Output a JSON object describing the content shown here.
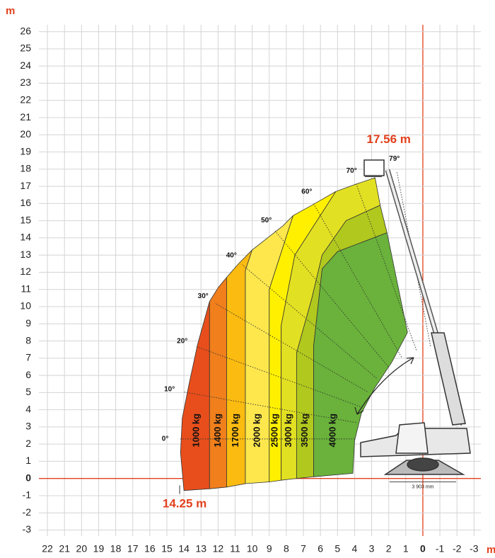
{
  "chart_data": {
    "type": "load-chart",
    "y_axis_label": "m",
    "x_axis_label": "m",
    "xlim": [
      22.5,
      -3.4
    ],
    "ylim": [
      -3.35,
      26.4
    ],
    "xticks": [
      22,
      21,
      20,
      19,
      18,
      17,
      16,
      15,
      14,
      13,
      12,
      11,
      10,
      9,
      8,
      7,
      6,
      5,
      4,
      3,
      2,
      1,
      0,
      -1,
      -2,
      -3
    ],
    "yticks": [
      -3,
      -2,
      -1,
      0,
      1,
      2,
      3,
      4,
      5,
      6,
      7,
      8,
      9,
      10,
      11,
      12,
      13,
      14,
      15,
      16,
      17,
      18,
      19,
      20,
      21,
      22,
      23,
      24,
      25,
      26
    ],
    "grid": true,
    "zero_color": "#e2401c",
    "series": [
      {
        "name": "1000 kg",
        "color": "#e84e1b",
        "x": [
          14.0,
          14.2,
          14.1,
          13.7,
          13.2,
          12.5,
          12.5
        ],
        "y": [
          -0.7,
          1.5,
          3.5,
          5.5,
          7.8,
          10.3,
          -0.6
        ]
      },
      {
        "name": "1400 kg",
        "color": "#f07f1c",
        "x": [
          12.5,
          12.5,
          12.0,
          11.5,
          11.5
        ],
        "y": [
          -0.6,
          10.3,
          11.1,
          11.7,
          -0.5
        ]
      },
      {
        "name": "1700 kg",
        "color": "#fbbb10",
        "x": [
          11.5,
          11.5,
          10.8,
          10.0,
          10.4,
          10.4
        ],
        "y": [
          -0.5,
          11.7,
          12.5,
          13.3,
          12.1,
          -0.3
        ]
      },
      {
        "name": "2000 kg",
        "color": "#fde74c",
        "x": [
          10.4,
          10.4,
          10.0,
          9.1,
          8.2,
          7.6,
          9.0,
          9.0
        ],
        "y": [
          -0.3,
          12.1,
          13.3,
          14.0,
          14.7,
          15.3,
          11.0,
          -0.2
        ]
      },
      {
        "name": "2500 kg",
        "color": "#fff000",
        "x": [
          9.0,
          9.0,
          7.6,
          6.5,
          5.1,
          7.5,
          8.3,
          8.3
        ],
        "y": [
          -0.2,
          11.0,
          15.3,
          15.9,
          16.7,
          13.0,
          8.9,
          -0.1
        ]
      },
      {
        "name": "3000 kg",
        "color": "#e2e022",
        "x": [
          8.3,
          8.3,
          7.5,
          5.1,
          4.0,
          2.8,
          2.5,
          4.5,
          5.9,
          6.5,
          7.4,
          7.4
        ],
        "y": [
          -0.1,
          8.9,
          13.0,
          16.7,
          17.1,
          17.5,
          15.9,
          15.0,
          13.0,
          10.5,
          7.3,
          0.0
        ]
      },
      {
        "name": "3500 kg",
        "color": "#b1c81e",
        "x": [
          7.4,
          7.4,
          6.5,
          5.9,
          4.5,
          2.5,
          2.1,
          5.0,
          5.9,
          6.4,
          6.4
        ],
        "y": [
          0.0,
          7.3,
          10.5,
          13.0,
          15.0,
          15.9,
          14.3,
          13.2,
          12.2,
          7.7,
          0.1
        ]
      },
      {
        "name": "4000 kg",
        "color": "#6ab23b",
        "x": [
          6.4,
          6.4,
          5.9,
          5.0,
          2.1,
          0.9,
          1.8,
          2.8,
          3.6,
          4.0,
          4.1
        ],
        "y": [
          0.1,
          7.7,
          12.2,
          13.2,
          14.3,
          8.5,
          6.8,
          5.3,
          3.8,
          2.2,
          0.3
        ]
      }
    ],
    "angles": [
      {
        "value": 0,
        "label": "0°"
      },
      {
        "value": 10,
        "label": "10°"
      },
      {
        "value": 20,
        "label": "20°"
      },
      {
        "value": 30,
        "label": "30°"
      },
      {
        "value": 40,
        "label": "40°"
      },
      {
        "value": 50,
        "label": "50°"
      },
      {
        "value": 60,
        "label": "60°"
      },
      {
        "value": 70,
        "label": "70°"
      },
      {
        "value": 79,
        "label": "79°"
      }
    ],
    "max_height": {
      "value": 17.56,
      "label": "17.56 m"
    },
    "max_reach": {
      "value": 14.25,
      "label": "14.25 m"
    },
    "base_width": {
      "value": 3903,
      "label": "3 903 mm"
    }
  }
}
